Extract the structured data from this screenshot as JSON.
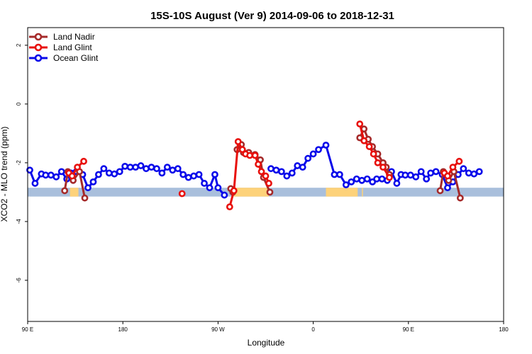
{
  "chart_data": {
    "type": "line",
    "title": "15S-10S August (Ver 9)   2014-09-06 to 2018-12-31",
    "xlabel": "Longitude",
    "ylabel": "XCO2 - MLO trend (ppm)",
    "xlim": [
      90,
      540
    ],
    "ylim": [
      -7.4,
      2.6
    ],
    "x_ticks": [
      90,
      180,
      270,
      360,
      450,
      540
    ],
    "x_tick_labels": [
      "90 E",
      "180",
      "90 W",
      "0",
      "90 E",
      "180"
    ],
    "y_ticks": [
      2,
      0,
      -2,
      -4,
      -6
    ],
    "y_tick_labels": [
      "2",
      "0",
      "-2",
      "-4",
      "-6"
    ],
    "grid": false,
    "legend_position": "top-left",
    "band": {
      "y_range": [
        -3.15,
        -2.85
      ],
      "color": "#a9bfdc",
      "land_color": "#fdd27a",
      "land_segments": [
        [
          130,
          138
        ],
        [
          284,
          318
        ],
        [
          372,
          402
        ],
        [
          406,
          407
        ]
      ]
    },
    "series": [
      {
        "name": "Land Nadir",
        "color": "#a52a2a",
        "segments": [
          [
            [
              125,
              -2.95
            ],
            [
              128,
              -2.3
            ],
            [
              133,
              -2.6
            ],
            [
              139,
              -2.3
            ],
            [
              144,
              -3.2
            ]
          ],
          [
            [
              282,
              -2.88
            ],
            [
              284,
              -3.0
            ]
          ],
          [
            [
              288,
              -1.55
            ],
            [
              292,
              -1.38
            ],
            [
              294,
              -1.65
            ],
            [
              299,
              -1.65
            ],
            [
              305,
              -1.72
            ],
            [
              310,
              -1.9
            ],
            [
              313,
              -2.5
            ],
            [
              319,
              -3.0
            ]
          ],
          [
            [
              404,
              -1.15
            ],
            [
              408,
              -0.85
            ],
            [
              412,
              -1.2
            ],
            [
              416,
              -1.45
            ],
            [
              421,
              -1.7
            ],
            [
              426,
              -2.0
            ],
            [
              429,
              -2.15
            ],
            [
              432,
              -2.4
            ]
          ],
          [
            [
              480,
              -2.95
            ],
            [
              483,
              -2.3
            ],
            [
              488,
              -2.6
            ],
            [
              493,
              -2.3
            ],
            [
              499,
              -3.2
            ]
          ]
        ]
      },
      {
        "name": "Land Glint",
        "color": "#e8100c",
        "segments": [
          [
            [
              129,
              -2.35
            ],
            [
              132,
              -2.45
            ],
            [
              137,
              -2.15
            ],
            [
              143,
              -1.95
            ]
          ],
          [
            [
              236,
              -3.05
            ]
          ],
          [
            [
              281,
              -3.5
            ],
            [
              285,
              -2.95
            ],
            [
              289,
              -1.28
            ],
            [
              293,
              -1.55
            ],
            [
              296,
              -1.7
            ],
            [
              300,
              -1.75
            ],
            [
              305,
              -1.75
            ],
            [
              308,
              -2.05
            ],
            [
              311,
              -2.3
            ],
            [
              315,
              -2.45
            ],
            [
              318,
              -2.7
            ]
          ],
          [
            [
              404,
              -0.68
            ],
            [
              408,
              -1.25
            ],
            [
              413,
              -1.45
            ],
            [
              417,
              -1.7
            ],
            [
              421,
              -2.0
            ],
            [
              426,
              -2.15
            ],
            [
              432,
              -2.5
            ]
          ],
          [
            [
              484,
              -2.35
            ],
            [
              487,
              -2.45
            ],
            [
              492,
              -2.15
            ],
            [
              498,
              -1.95
            ]
          ]
        ]
      },
      {
        "name": "Ocean Glint",
        "color": "#0909ea",
        "segments": [
          [
            [
              92,
              -2.25
            ],
            [
              97,
              -2.7
            ],
            [
              103,
              -2.38
            ],
            [
              107,
              -2.42
            ],
            [
              112,
              -2.42
            ],
            [
              117,
              -2.48
            ],
            [
              122,
              -2.3
            ],
            [
              127,
              -2.55
            ],
            [
              131,
              -2.35
            ],
            [
              136,
              -2.3
            ],
            [
              142,
              -2.4
            ],
            [
              147,
              -2.85
            ],
            [
              152,
              -2.65
            ],
            [
              157,
              -2.4
            ],
            [
              162,
              -2.2
            ],
            [
              167,
              -2.35
            ],
            [
              172,
              -2.38
            ],
            [
              177,
              -2.3
            ],
            [
              182,
              -2.12
            ],
            [
              187,
              -2.15
            ],
            [
              192,
              -2.15
            ],
            [
              197,
              -2.1
            ],
            [
              202,
              -2.2
            ],
            [
              207,
              -2.15
            ],
            [
              212,
              -2.2
            ],
            [
              217,
              -2.35
            ],
            [
              222,
              -2.15
            ],
            [
              227,
              -2.25
            ],
            [
              232,
              -2.2
            ],
            [
              237,
              -2.4
            ],
            [
              242,
              -2.5
            ],
            [
              247,
              -2.45
            ],
            [
              252,
              -2.4
            ],
            [
              257,
              -2.7
            ],
            [
              262,
              -2.85
            ],
            [
              267,
              -2.4
            ],
            [
              270,
              -2.85
            ],
            [
              276,
              -3.1
            ]
          ],
          [
            [
              320,
              -2.2
            ],
            [
              325,
              -2.25
            ],
            [
              330,
              -2.3
            ],
            [
              335,
              -2.45
            ],
            [
              340,
              -2.35
            ],
            [
              345,
              -2.1
            ],
            [
              350,
              -2.15
            ],
            [
              355,
              -1.85
            ],
            [
              360,
              -1.7
            ],
            [
              365,
              -1.55
            ],
            [
              372,
              -1.4
            ],
            [
              380,
              -2.4
            ],
            [
              385,
              -2.4
            ],
            [
              391,
              -2.75
            ],
            [
              396,
              -2.65
            ],
            [
              401,
              -2.55
            ],
            [
              406,
              -2.6
            ],
            [
              411,
              -2.55
            ],
            [
              416,
              -2.65
            ],
            [
              420,
              -2.55
            ],
            [
              425,
              -2.55
            ],
            [
              430,
              -2.6
            ],
            [
              434,
              -2.3
            ],
            [
              439,
              -2.7
            ],
            [
              443,
              -2.4
            ],
            [
              447,
              -2.42
            ],
            [
              452,
              -2.42
            ],
            [
              457,
              -2.48
            ],
            [
              462,
              -2.3
            ],
            [
              467,
              -2.55
            ],
            [
              471,
              -2.35
            ],
            [
              476,
              -2.3
            ],
            [
              482,
              -2.4
            ],
            [
              487,
              -2.85
            ],
            [
              492,
              -2.65
            ],
            [
              497,
              -2.4
            ],
            [
              502,
              -2.2
            ],
            [
              507,
              -2.35
            ],
            [
              512,
              -2.38
            ],
            [
              517,
              -2.3
            ]
          ]
        ]
      }
    ]
  }
}
